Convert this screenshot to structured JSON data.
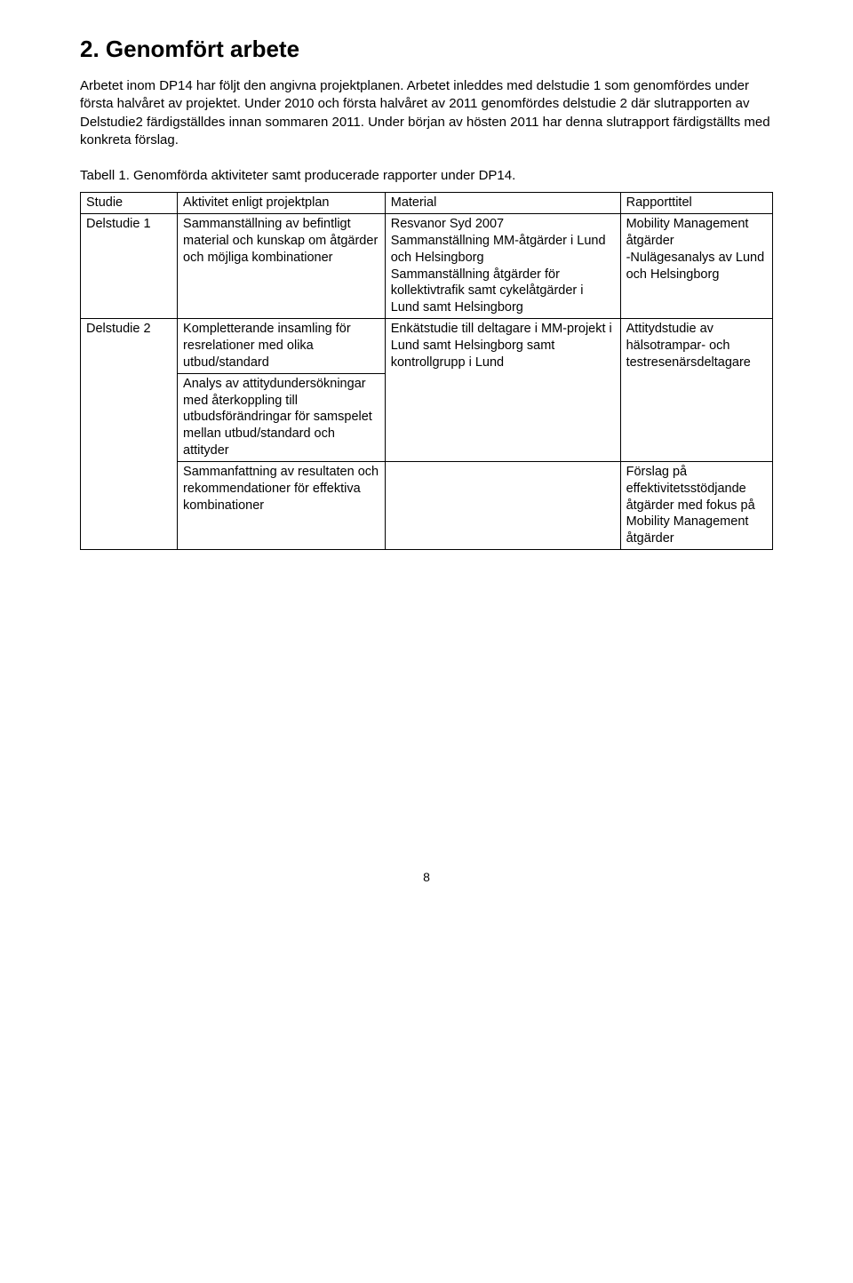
{
  "heading": "2. Genomfört arbete",
  "paragraphs": {
    "p1": "Arbetet inom DP14 har följt den angivna projektplanen. Arbetet inleddes med delstudie 1 som genomfördes under första halvåret av projektet. Under 2010 och första halvåret av 2011 genomfördes delstudie 2 där slutrapporten av Delstudie2 färdigställdes innan sommaren 2011. Under början av hösten 2011 har denna slutrapport färdigställts med konkreta förslag.",
    "caption": "Tabell 1. Genomförda aktiviteter samt producerade rapporter under DP14."
  },
  "table": {
    "headers": {
      "c1": "Studie",
      "c2": "Aktivitet enligt projektplan",
      "c3": "Material",
      "c4": "Rapporttitel"
    },
    "row1": {
      "studie": "Delstudie 1",
      "aktivitet": "Sammanställning av befintligt material och kunskap om åtgärder och möjliga kombinationer",
      "material": "Resvanor Syd 2007\nSammanställning MM-åtgärder i Lund och Helsingborg\nSammanställning åtgärder för kollektivtrafik samt cykelåtgärder i Lund samt Helsingborg",
      "rapport": "Mobility Management åtgärder\n-Nulägesanalys av Lund och Helsingborg"
    },
    "row2": {
      "studie": "Delstudie 2",
      "aktivitet_a": "Kompletterande insamling för resrelationer med olika utbud/standard",
      "aktivitet_b": "Analys av attitydundersökningar med återkoppling till utbudsförändringar för samspelet mellan utbud/standard och attityder",
      "aktivitet_c": "Sammanfattning av resultaten och rekommendationer för effektiva kombinationer",
      "material_a": "Enkätstudie till deltagare i MM-projekt i Lund samt Helsingborg samt kontrollgrupp i Lund",
      "rapport_a": "Attitydstudie av hälsotrampar- och testresenärsdeltagare",
      "rapport_c": "Förslag på effektivitetsstödjande åtgärder med fokus på Mobility Management åtgärder"
    }
  },
  "pageNumber": "8"
}
